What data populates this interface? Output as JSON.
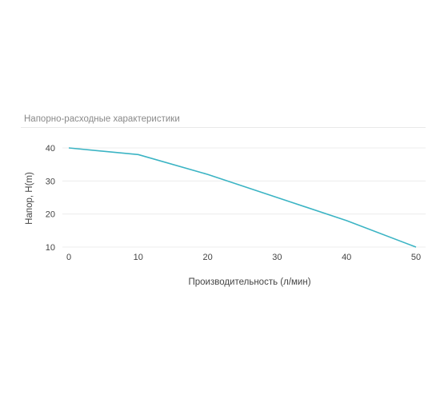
{
  "chart_data": {
    "type": "line",
    "title": "Напорно-расходные характеристики",
    "xlabel": "Производительность (л/мин)",
    "ylabel": "Напор, H(m)",
    "x_ticks": [
      0,
      10,
      20,
      30,
      40,
      50
    ],
    "y_ticks": [
      10,
      20,
      30,
      40
    ],
    "xlim": [
      0,
      50
    ],
    "ylim": [
      10,
      40
    ],
    "grid": "horizontal",
    "series": [
      {
        "color": "#3bb4c4",
        "x": [
          0,
          10,
          20,
          30,
          40,
          50
        ],
        "values": [
          40,
          38,
          32,
          25,
          18,
          10
        ]
      }
    ]
  }
}
